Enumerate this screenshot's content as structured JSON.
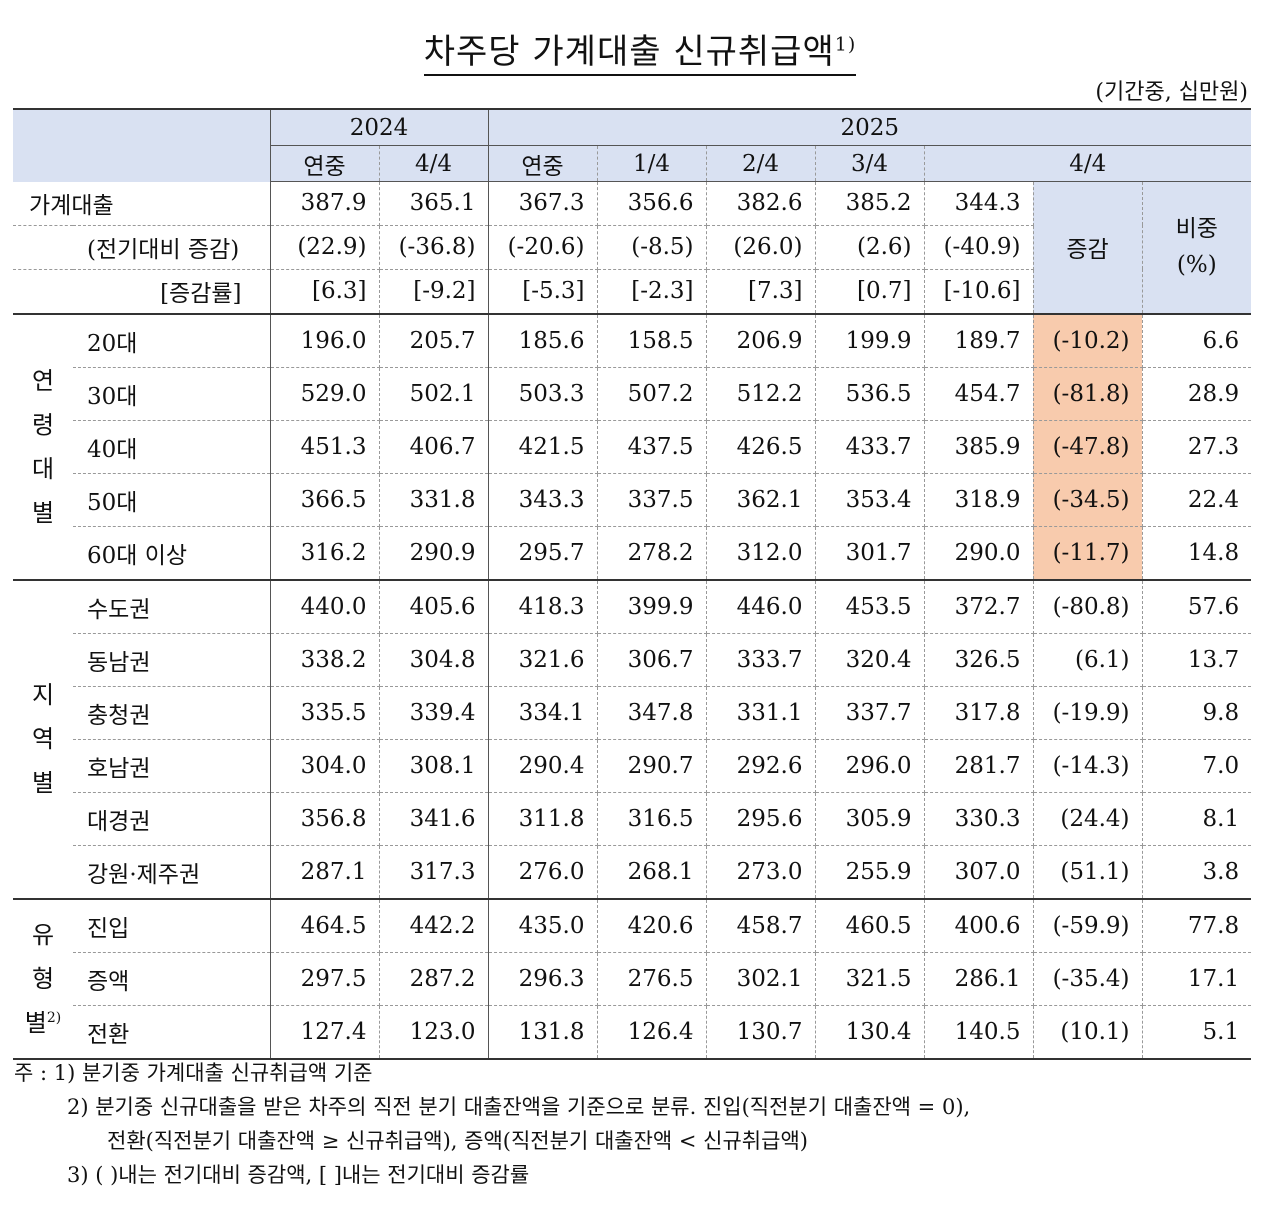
{
  "title": "차주당 가계대출 신규취급액",
  "title_sup": "1)",
  "unit": "(기간중, 십만원)",
  "header": {
    "year_2024": "2024",
    "year_2025": "2025",
    "cols": [
      "연중",
      "4/4",
      "연중",
      "1/4",
      "2/4",
      "3/4",
      "4/4"
    ],
    "change": "증감",
    "share": "비중",
    "share_unit": "(%)"
  },
  "total": {
    "label": "가계대출",
    "values": [
      "387.9",
      "365.1",
      "367.3",
      "356.6",
      "382.6",
      "385.2",
      "344.3"
    ],
    "diff_label": "(전기대비 증감)",
    "diff": [
      "(22.9)",
      "(-36.8)",
      "(-20.6)",
      "(-8.5)",
      "(26.0)",
      "(2.6)",
      "(-40.9)"
    ],
    "rate_label": "[증감률]",
    "rate": [
      "[6.3]",
      "[-9.2]",
      "[-5.3]",
      "[-2.3]",
      "[7.3]",
      "[0.7]",
      "[-10.6]"
    ]
  },
  "groups": [
    {
      "label": "연\n령\n대\n별",
      "rows": [
        {
          "label": "20대",
          "values": [
            "196.0",
            "205.7",
            "185.6",
            "158.5",
            "206.9",
            "199.9",
            "189.7"
          ],
          "change": "(-10.2)",
          "share": "6.6"
        },
        {
          "label": "30대",
          "values": [
            "529.0",
            "502.1",
            "503.3",
            "507.2",
            "512.2",
            "536.5",
            "454.7"
          ],
          "change": "(-81.8)",
          "share": "28.9"
        },
        {
          "label": "40대",
          "values": [
            "451.3",
            "406.7",
            "421.5",
            "437.5",
            "426.5",
            "433.7",
            "385.9"
          ],
          "change": "(-47.8)",
          "share": "27.3"
        },
        {
          "label": "50대",
          "values": [
            "366.5",
            "331.8",
            "343.3",
            "337.5",
            "362.1",
            "353.4",
            "318.9"
          ],
          "change": "(-34.5)",
          "share": "22.4"
        },
        {
          "label": "60대 이상",
          "values": [
            "316.2",
            "290.9",
            "295.7",
            "278.2",
            "312.0",
            "301.7",
            "290.0"
          ],
          "change": "(-11.7)",
          "share": "14.8"
        }
      ]
    },
    {
      "label": "지\n역\n별",
      "rows": [
        {
          "label": "수도권",
          "values": [
            "440.0",
            "405.6",
            "418.3",
            "399.9",
            "446.0",
            "453.5",
            "372.7"
          ],
          "change": "(-80.8)",
          "share": "57.6"
        },
        {
          "label": "동남권",
          "values": [
            "338.2",
            "304.8",
            "321.6",
            "306.7",
            "333.7",
            "320.4",
            "326.5"
          ],
          "change": "(6.1)",
          "share": "13.7"
        },
        {
          "label": "충청권",
          "values": [
            "335.5",
            "339.4",
            "334.1",
            "347.8",
            "331.1",
            "337.7",
            "317.8"
          ],
          "change": "(-19.9)",
          "share": "9.8"
        },
        {
          "label": "호남권",
          "values": [
            "304.0",
            "308.1",
            "290.4",
            "290.7",
            "292.6",
            "296.0",
            "281.7"
          ],
          "change": "(-14.3)",
          "share": "7.0"
        },
        {
          "label": "대경권",
          "values": [
            "356.8",
            "341.6",
            "311.8",
            "316.5",
            "295.6",
            "305.9",
            "330.3"
          ],
          "change": "(24.4)",
          "share": "8.1"
        },
        {
          "label": "강원·제주권",
          "values": [
            "287.1",
            "317.3",
            "276.0",
            "268.1",
            "273.0",
            "255.9",
            "307.0"
          ],
          "change": "(51.1)",
          "share": "3.8"
        }
      ]
    },
    {
      "label": "유\n형\n별",
      "label_sup": "2)",
      "rows": [
        {
          "label": "진입",
          "values": [
            "464.5",
            "442.2",
            "435.0",
            "420.6",
            "458.7",
            "460.5",
            "400.6"
          ],
          "change": "(-59.9)",
          "share": "77.8"
        },
        {
          "label": "증액",
          "values": [
            "297.5",
            "287.2",
            "296.3",
            "276.5",
            "302.1",
            "321.5",
            "286.1"
          ],
          "change": "(-35.4)",
          "share": "17.1"
        },
        {
          "label": "전환",
          "values": [
            "127.4",
            "123.0",
            "131.8",
            "126.4",
            "130.7",
            "130.4",
            "140.5"
          ],
          "change": "(10.1)",
          "share": "5.1"
        }
      ]
    }
  ],
  "notes": {
    "prefix": "주 : ",
    "n1": "1) 분기중 가계대출 신규취급액 기준",
    "n2a": "2) 분기중 신규대출을 받은 차주의 직전 분기 대출잔액을 기준으로 분류. 진입(직전분기 대출잔액 = 0),",
    "n2b": "전환(직전분기 대출잔액 ≥ 신규취급액), 증액(직전분기 대출잔액 < 신규취급액)",
    "n3": "3) ( )내는 전기대비 증감액, [ ]내는 전기대비 증감률"
  }
}
